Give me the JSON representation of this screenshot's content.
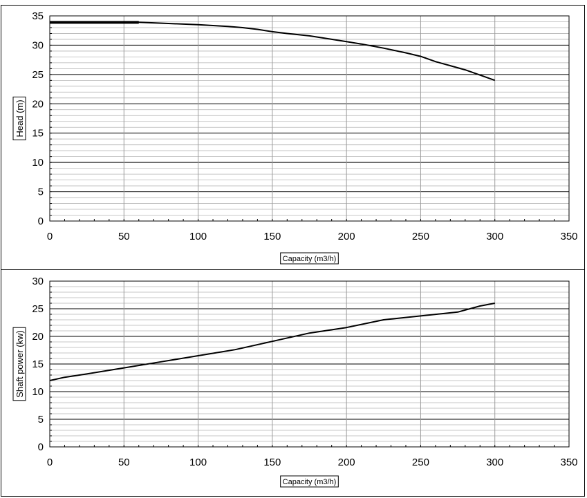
{
  "chart_data": [
    {
      "type": "line",
      "ylabel": "Head (m)",
      "xlabel": "Capacity (m3/h)",
      "xlim": [
        0,
        350
      ],
      "ylim": [
        0,
        35
      ],
      "x_ticks": [
        "0",
        "50",
        "100",
        "150",
        "200",
        "250",
        "300",
        "350"
      ],
      "y_ticks": [
        "0",
        "5",
        "10",
        "15",
        "20",
        "25",
        "30",
        "35"
      ],
      "x_tick_values": [
        0,
        50,
        100,
        150,
        200,
        250,
        300,
        350
      ],
      "y_tick_values": [
        0,
        5,
        10,
        15,
        20,
        25,
        30,
        35
      ],
      "grid": true,
      "series": [
        {
          "x": [
            0,
            60,
            80,
            100,
            120,
            130,
            140,
            150,
            160,
            175,
            190,
            200,
            210,
            225,
            240,
            250,
            260,
            270,
            280,
            290,
            300
          ],
          "y": [
            33.9,
            33.9,
            33.7,
            33.5,
            33.2,
            33.0,
            32.7,
            32.3,
            32.0,
            31.6,
            31.0,
            30.6,
            30.2,
            29.5,
            28.7,
            28.1,
            27.2,
            26.5,
            25.8,
            24.9,
            24.0
          ]
        }
      ]
    },
    {
      "type": "line",
      "ylabel": "Shaft power (kw)",
      "xlabel": "Capacity (m3/h)",
      "xlim": [
        0,
        350
      ],
      "ylim": [
        0,
        30
      ],
      "x_ticks": [
        "0",
        "50",
        "100",
        "150",
        "200",
        "250",
        "300",
        "350"
      ],
      "y_ticks": [
        "0",
        "5",
        "10",
        "15",
        "20",
        "25",
        "30"
      ],
      "x_tick_values": [
        0,
        50,
        100,
        150,
        200,
        250,
        300,
        350
      ],
      "y_tick_values": [
        0,
        5,
        10,
        15,
        20,
        25,
        30
      ],
      "grid": true,
      "series": [
        {
          "x": [
            0,
            10,
            25,
            50,
            75,
            100,
            125,
            150,
            175,
            200,
            225,
            250,
            275,
            290,
            300
          ],
          "y": [
            12.0,
            12.6,
            13.2,
            14.3,
            15.4,
            16.5,
            17.6,
            19.1,
            20.6,
            21.6,
            23.0,
            23.7,
            24.4,
            25.5,
            26.0
          ]
        }
      ]
    }
  ]
}
